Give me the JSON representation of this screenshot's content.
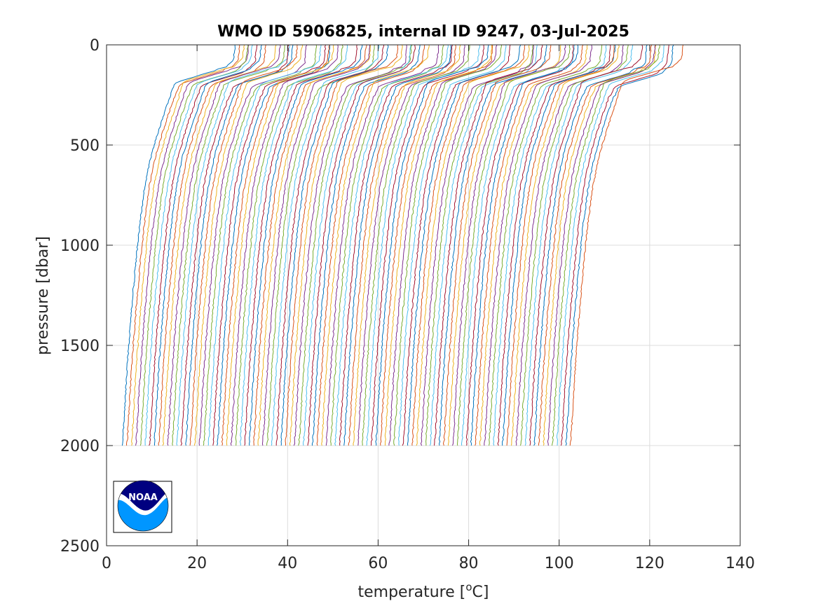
{
  "chart_data": {
    "type": "line",
    "title": "WMO ID 5906825, internal ID 9247, 03-Jul-2025",
    "xlabel": "temperature [",
    "xlabel_unit_sup": "o",
    "xlabel_unit_end": "C]",
    "ylabel": "pressure [dbar]",
    "xlim": [
      0,
      140
    ],
    "ylim": [
      0,
      2500
    ],
    "y_reversed": true,
    "grid": true,
    "x_ticks": [
      0,
      20,
      40,
      60,
      80,
      100,
      120,
      140
    ],
    "y_ticks": [
      0,
      500,
      1000,
      1500,
      2000,
      2500
    ],
    "x_tick_labels": [
      "0",
      "20",
      "40",
      "60",
      "80",
      "100",
      "120",
      "140"
    ],
    "y_tick_labels": [
      "0",
      "500",
      "1000",
      "1500",
      "2000",
      "2500"
    ],
    "waterfall": {
      "profile_count": 100,
      "offset_step": 1,
      "first_surface_temperature": 27.2,
      "last_surface_temperature": 128.0,
      "first_bottom_temperature": 3.4,
      "last_bottom_temperature": 102.2,
      "bottom_pressure": 2000
    },
    "reference_profile": {
      "p": [
        0,
        80,
        130,
        160,
        185,
        200,
        260,
        350,
        450,
        550,
        700,
        900,
        1100,
        1300,
        1500,
        1700,
        1900,
        2000
      ],
      "t": [
        27.2,
        26.8,
        24.5,
        20.0,
        16.3,
        15.0,
        14.0,
        12.6,
        11.2,
        9.9,
        8.5,
        7.3,
        6.4,
        5.6,
        4.9,
        4.3,
        3.8,
        3.5
      ]
    },
    "series_colors": [
      "#0072bd",
      "#d95319",
      "#edb120",
      "#7e2f8e",
      "#77ac30",
      "#4dbeee",
      "#a2142f"
    ]
  },
  "logo": {
    "text": "NOAA",
    "colors": {
      "top": "#000080",
      "bottom": "#0096ff",
      "swoosh": "#ffffff"
    }
  }
}
